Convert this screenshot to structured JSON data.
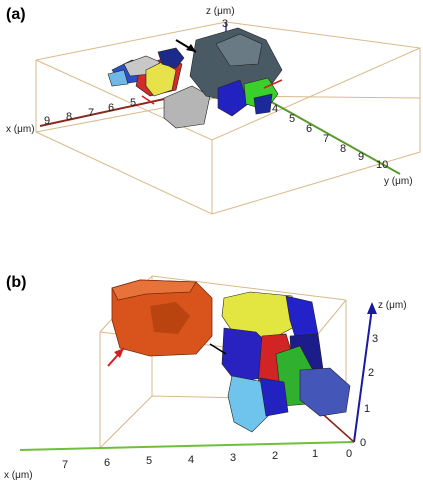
{
  "panels": [
    {
      "label": "(a)",
      "axes": {
        "x": {
          "label": "x (μm)",
          "ticks": [
            "9",
            "8",
            "7",
            "6",
            "5"
          ]
        },
        "y": {
          "label": "y (μm)",
          "ticks": [
            "4",
            "5",
            "6",
            "7",
            "8",
            "9",
            "10"
          ]
        },
        "z": {
          "label": "z (μm)",
          "ticks": [
            "3"
          ]
        }
      },
      "colors": {
        "box": "#d9b98a",
        "x_axis": "#8b2a1c",
        "y_axis": "#5a9a2a",
        "z_axis": "#3a3aa0",
        "arrow_black": "#000000",
        "arrow_red": "#d02020"
      }
    },
    {
      "label": "(b)",
      "axes": {
        "x": {
          "label": "x (μm)",
          "ticks": [
            "7",
            "6",
            "5",
            "4",
            "3",
            "2",
            "1",
            "0"
          ]
        },
        "z": {
          "label": "z (μm)",
          "ticks": [
            "3",
            "2",
            "1",
            "0"
          ]
        }
      },
      "colors": {
        "box": "#d9b98a",
        "x_axis": "#6fbf3a",
        "z_axis": "#1a1aa0",
        "arrow_black": "#000000",
        "arrow_red": "#d02020"
      }
    }
  ]
}
